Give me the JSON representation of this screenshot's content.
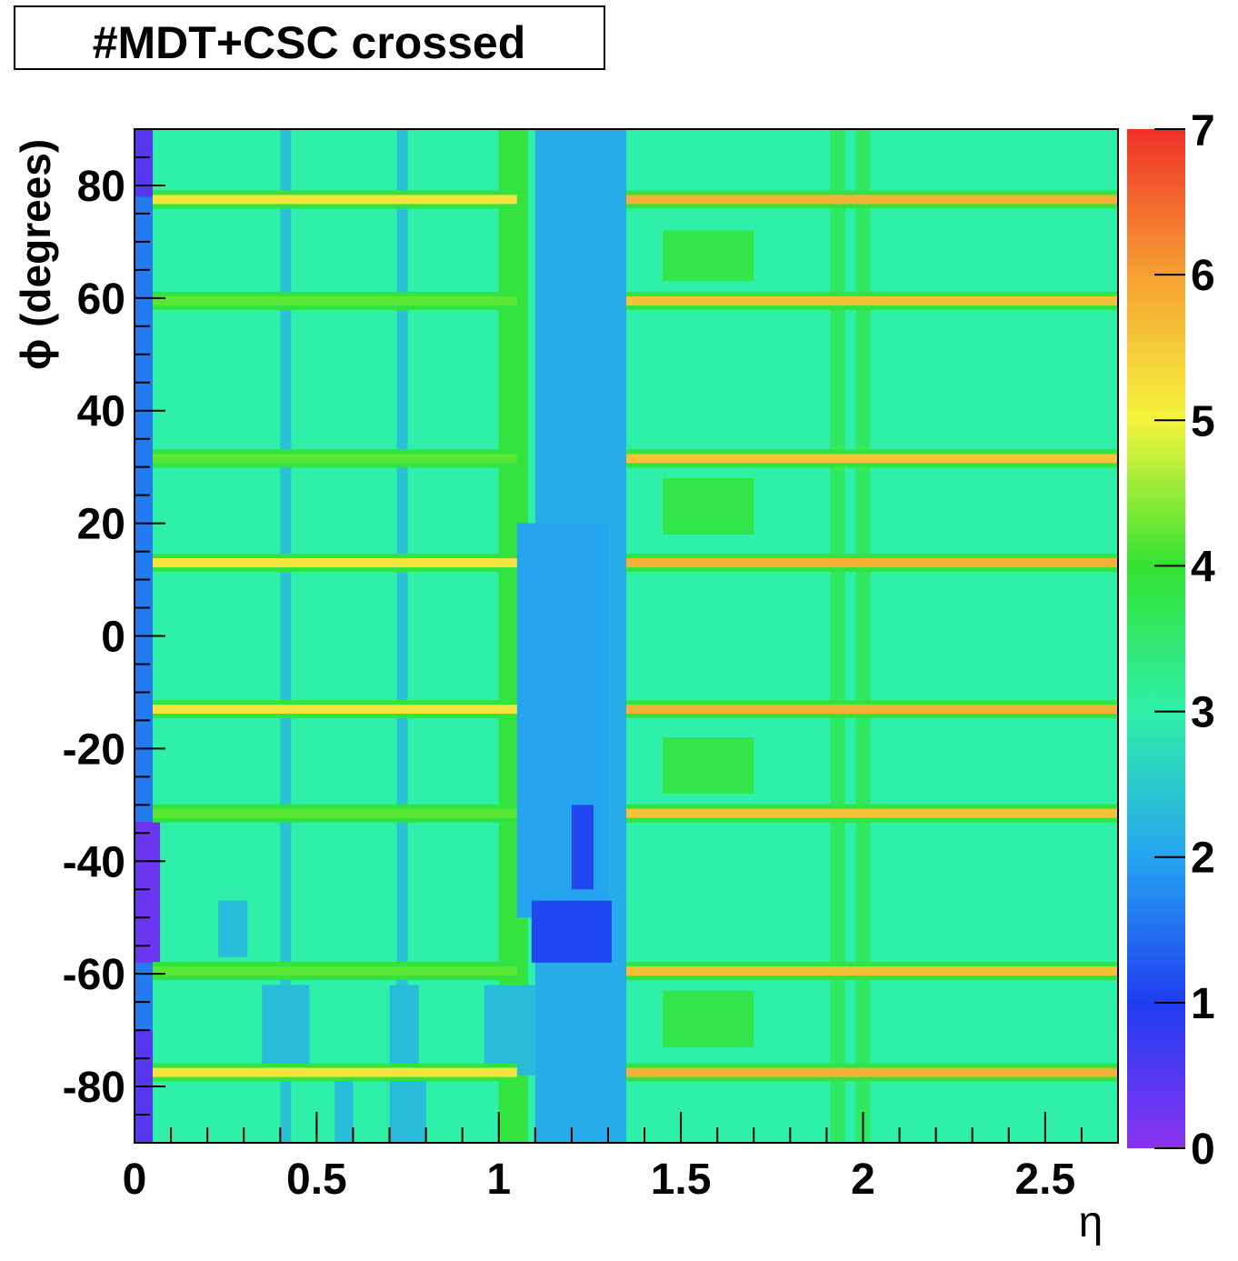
{
  "title_box": {
    "text": "#MDT+CSC crossed"
  },
  "chart_data": {
    "type": "heatmap",
    "title": "#MDT+CSC crossed",
    "xlabel": "η",
    "ylabel": "ϕ (degrees)",
    "xlim": [
      0,
      2.7
    ],
    "ylim": [
      -90,
      90
    ],
    "zlim": [
      0,
      7
    ],
    "x_ticks": [
      0,
      0.5,
      1,
      1.5,
      2,
      2.5
    ],
    "x_tick_labels": [
      "0",
      "0.5",
      "1",
      "1.5",
      "2",
      "2.5"
    ],
    "y_ticks": [
      -80,
      -60,
      -40,
      -20,
      0,
      20,
      40,
      60,
      80
    ],
    "y_tick_labels": [
      "-80",
      "-60",
      "-40",
      "-20",
      "0",
      "20",
      "40",
      "60",
      "80"
    ],
    "z_ticks": [
      0,
      1,
      2,
      3,
      4,
      5,
      6,
      7
    ],
    "z_tick_labels": [
      "0",
      "1",
      "2",
      "3",
      "4",
      "5",
      "6",
      "7"
    ],
    "background_value": 3,
    "colorscale": [
      "#8a33f0",
      "#1f3df0",
      "#26a4f0",
      "#2ff0a8",
      "#33e233",
      "#f5f53d",
      "#f5a033",
      "#f0302a"
    ],
    "regions": [
      {
        "eta": [
          0.0,
          0.05
        ],
        "phi": [
          -90,
          90
        ],
        "value": 1.6
      },
      {
        "eta": [
          0.0,
          0.07
        ],
        "phi": [
          -58,
          -33
        ],
        "value": 0.3
      },
      {
        "eta": [
          0.0,
          0.05
        ],
        "phi": [
          78,
          90
        ],
        "value": 0.5
      },
      {
        "eta": [
          0.0,
          0.05
        ],
        "phi": [
          -90,
          -70
        ],
        "value": 0.5
      },
      {
        "eta": [
          1.0,
          1.08
        ],
        "phi": [
          -90,
          90
        ],
        "value": 3.9
      },
      {
        "eta": [
          1.1,
          1.35
        ],
        "phi": [
          -90,
          90
        ],
        "value": 2.1
      },
      {
        "eta": [
          1.05,
          1.3
        ],
        "phi": [
          -50,
          20
        ],
        "value": 2.0
      },
      {
        "eta": [
          1.09,
          1.31
        ],
        "phi": [
          -58,
          -47
        ],
        "value": 1.1
      },
      {
        "eta": [
          1.2,
          1.26
        ],
        "phi": [
          -45,
          -30
        ],
        "value": 1.1
      },
      {
        "eta": [
          1.91,
          1.95
        ],
        "phi": [
          -90,
          90
        ],
        "value": 3.6
      },
      {
        "eta": [
          1.98,
          2.02
        ],
        "phi": [
          -90,
          90
        ],
        "value": 3.6
      },
      {
        "eta": [
          1.45,
          1.7
        ],
        "phi": [
          63,
          72
        ],
        "value": 3.8
      },
      {
        "eta": [
          1.45,
          1.7
        ],
        "phi": [
          18,
          28
        ],
        "value": 3.8
      },
      {
        "eta": [
          1.45,
          1.7
        ],
        "phi": [
          -28,
          -18
        ],
        "value": 3.8
      },
      {
        "eta": [
          1.45,
          1.7
        ],
        "phi": [
          -73,
          -63
        ],
        "value": 3.8
      },
      {
        "eta": [
          0.4,
          0.43
        ],
        "phi": [
          -90,
          90
        ],
        "value": 2.4
      },
      {
        "eta": [
          0.72,
          0.75
        ],
        "phi": [
          -90,
          90
        ],
        "value": 2.4
      },
      {
        "eta": [
          0.35,
          0.48
        ],
        "phi": [
          -78,
          -62
        ],
        "value": 2.3
      },
      {
        "eta": [
          0.7,
          0.78
        ],
        "phi": [
          -78,
          -62
        ],
        "value": 2.3
      },
      {
        "eta": [
          0.55,
          0.6
        ],
        "phi": [
          -90,
          -78
        ],
        "value": 2.3
      },
      {
        "eta": [
          0.7,
          0.8
        ],
        "phi": [
          -90,
          -78
        ],
        "value": 2.3
      },
      {
        "eta": [
          0.23,
          0.31
        ],
        "phi": [
          -57,
          -47
        ],
        "value": 2.3
      },
      {
        "eta": [
          0.96,
          1.1
        ],
        "phi": [
          -78,
          -62
        ],
        "value": 2.3
      }
    ],
    "bands": [
      {
        "phi": 77.5,
        "eta": [
          0.05,
          1.05
        ],
        "value": 5.2
      },
      {
        "phi": 77.5,
        "eta": [
          1.35,
          2.7
        ],
        "value": 5.8
      },
      {
        "phi": 59.5,
        "eta": [
          0.05,
          1.05
        ],
        "value": 4.2
      },
      {
        "phi": 59.5,
        "eta": [
          1.35,
          2.7
        ],
        "value": 5.6
      },
      {
        "phi": 31.5,
        "eta": [
          0.05,
          1.05
        ],
        "value": 4.2
      },
      {
        "phi": 31.5,
        "eta": [
          1.35,
          2.7
        ],
        "value": 5.6
      },
      {
        "phi": 13.0,
        "eta": [
          0.05,
          1.05
        ],
        "value": 5.2
      },
      {
        "phi": 13.0,
        "eta": [
          1.35,
          2.7
        ],
        "value": 5.8
      },
      {
        "phi": -13.0,
        "eta": [
          0.05,
          1.05
        ],
        "value": 5.2
      },
      {
        "phi": -13.0,
        "eta": [
          1.35,
          2.7
        ],
        "value": 5.8
      },
      {
        "phi": -31.5,
        "eta": [
          0.05,
          1.05
        ],
        "value": 4.2
      },
      {
        "phi": -31.5,
        "eta": [
          1.35,
          2.7
        ],
        "value": 5.6
      },
      {
        "phi": -59.5,
        "eta": [
          0.05,
          1.05
        ],
        "value": 4.2
      },
      {
        "phi": -59.5,
        "eta": [
          1.35,
          2.7
        ],
        "value": 5.6
      },
      {
        "phi": -77.5,
        "eta": [
          0.05,
          1.05
        ],
        "value": 5.2
      },
      {
        "phi": -77.5,
        "eta": [
          1.35,
          2.7
        ],
        "value": 5.8
      }
    ]
  }
}
